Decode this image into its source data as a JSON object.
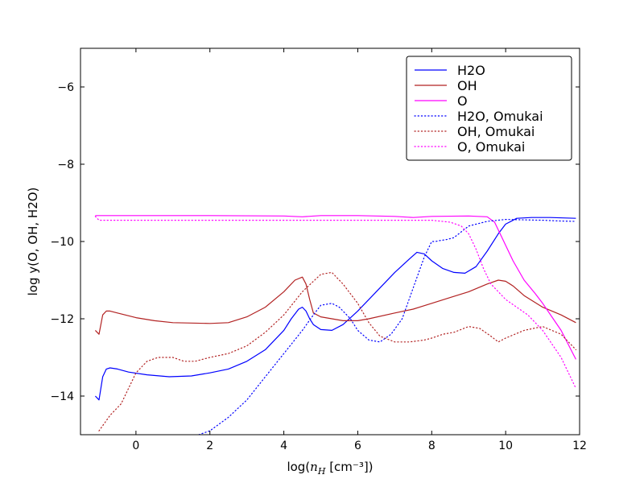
{
  "chart_data": {
    "type": "line",
    "title": "",
    "xlabel": "log(n_H [cm⁻³])",
    "xlabel_parts": {
      "pre": "log(",
      "var": "n",
      "sub": "H",
      "post": " [cm⁻³])"
    },
    "ylabel": "log y(O, OH, H2O)",
    "xlim": [
      -1.5,
      12
    ],
    "ylim": [
      -15,
      -5
    ],
    "xticks": [
      0,
      2,
      4,
      6,
      8,
      10,
      12
    ],
    "yticks": [
      -14,
      -12,
      -10,
      -8,
      -6
    ],
    "xtick_labels": [
      "0",
      "2",
      "4",
      "6",
      "8",
      "10",
      "12"
    ],
    "ytick_labels": [
      "−14",
      "−12",
      "−10",
      "−8",
      "−6"
    ],
    "grid": false,
    "legend_position": "top-right",
    "series": [
      {
        "name": "H2O",
        "color": "#0000ff",
        "style": "solid",
        "x": [
          -1.1,
          -1.0,
          -0.9,
          -0.8,
          -0.7,
          -0.5,
          -0.2,
          0.3,
          0.9,
          1.5,
          2.0,
          2.5,
          3.0,
          3.5,
          4.0,
          4.2,
          4.4,
          4.5,
          4.6,
          4.7,
          4.8,
          5.0,
          5.3,
          5.6,
          6.0,
          6.5,
          7.0,
          7.4,
          7.6,
          7.8,
          8.0,
          8.3,
          8.6,
          8.9,
          9.2,
          9.5,
          9.8,
          10.0,
          10.3,
          10.7,
          11.2,
          11.9
        ],
        "y": [
          -14.0,
          -14.1,
          -13.5,
          -13.3,
          -13.27,
          -13.3,
          -13.38,
          -13.45,
          -13.5,
          -13.48,
          -13.4,
          -13.3,
          -13.1,
          -12.8,
          -12.3,
          -12.0,
          -11.75,
          -11.7,
          -11.8,
          -12.0,
          -12.15,
          -12.28,
          -12.3,
          -12.15,
          -11.8,
          -11.3,
          -10.8,
          -10.45,
          -10.28,
          -10.32,
          -10.5,
          -10.7,
          -10.8,
          -10.82,
          -10.65,
          -10.25,
          -9.8,
          -9.55,
          -9.4,
          -9.38,
          -9.38,
          -9.4
        ]
      },
      {
        "name": "OH",
        "color": "#b22222",
        "style": "solid",
        "x": [
          -1.1,
          -1.0,
          -0.9,
          -0.8,
          -0.7,
          -0.5,
          0.0,
          0.5,
          1.0,
          2.0,
          2.5,
          3.0,
          3.5,
          4.0,
          4.3,
          4.5,
          4.6,
          4.7,
          4.8,
          5.0,
          5.3,
          5.6,
          6.0,
          6.3,
          7.0,
          7.5,
          8.0,
          8.5,
          9.0,
          9.5,
          9.8,
          10.0,
          10.2,
          10.5,
          11.0,
          11.5,
          11.9
        ],
        "y": [
          -12.3,
          -12.4,
          -11.9,
          -11.8,
          -11.8,
          -11.85,
          -11.97,
          -12.05,
          -12.1,
          -12.12,
          -12.1,
          -11.95,
          -11.7,
          -11.3,
          -11.0,
          -10.92,
          -11.1,
          -11.5,
          -11.85,
          -11.95,
          -12.0,
          -12.05,
          -12.05,
          -12.0,
          -11.85,
          -11.75,
          -11.6,
          -11.45,
          -11.3,
          -11.1,
          -11.0,
          -11.03,
          -11.15,
          -11.4,
          -11.7,
          -11.9,
          -12.1
        ]
      },
      {
        "name": "O",
        "color": "#ff00ff",
        "style": "solid",
        "x": [
          -1.1,
          -1.0,
          0.0,
          2.0,
          4.0,
          4.5,
          5.0,
          6.0,
          7.0,
          7.5,
          8.0,
          9.0,
          9.5,
          9.7,
          9.9,
          10.2,
          10.5,
          10.8,
          11.0,
          11.5,
          11.9
        ],
        "y": [
          -9.33,
          -9.33,
          -9.33,
          -9.33,
          -9.34,
          -9.36,
          -9.33,
          -9.33,
          -9.35,
          -9.38,
          -9.35,
          -9.34,
          -9.36,
          -9.5,
          -9.9,
          -10.5,
          -11.0,
          -11.35,
          -11.6,
          -12.3,
          -13.05
        ]
      },
      {
        "name": "H2O, Omukai",
        "color": "#0000ff",
        "style": "dotted",
        "x": [
          1.7,
          2.0,
          2.5,
          3.0,
          3.5,
          4.0,
          4.5,
          4.8,
          5.0,
          5.3,
          5.5,
          5.8,
          6.0,
          6.3,
          6.6,
          6.9,
          7.2,
          7.5,
          7.8,
          8.0,
          8.1,
          8.2,
          8.4,
          8.6,
          8.8,
          9.0,
          9.5,
          10.0,
          10.5,
          11.0,
          11.5,
          11.9
        ],
        "y": [
          -15.0,
          -14.9,
          -14.55,
          -14.1,
          -13.5,
          -12.9,
          -12.3,
          -11.9,
          -11.65,
          -11.6,
          -11.7,
          -12.0,
          -12.3,
          -12.55,
          -12.6,
          -12.4,
          -12.0,
          -11.2,
          -10.4,
          -10.0,
          -10.0,
          -9.98,
          -9.95,
          -9.9,
          -9.75,
          -9.6,
          -9.48,
          -9.43,
          -9.44,
          -9.45,
          -9.47,
          -9.48
        ]
      },
      {
        "name": "OH, Omukai",
        "color": "#b22222",
        "style": "dotted",
        "x": [
          -1.0,
          -0.7,
          -0.4,
          -0.2,
          0.0,
          0.3,
          0.6,
          1.0,
          1.3,
          1.6,
          2.0,
          2.5,
          3.0,
          3.5,
          4.0,
          4.5,
          5.0,
          5.3,
          5.6,
          6.0,
          6.3,
          6.6,
          7.0,
          7.4,
          7.8,
          8.0,
          8.3,
          8.6,
          9.0,
          9.3,
          9.6,
          9.8,
          10.0,
          10.5,
          11.0,
          11.5,
          11.9
        ],
        "y": [
          -14.9,
          -14.5,
          -14.2,
          -13.8,
          -13.4,
          -13.1,
          -13.0,
          -13.0,
          -13.1,
          -13.1,
          -13.0,
          -12.9,
          -12.7,
          -12.35,
          -11.9,
          -11.3,
          -10.85,
          -10.8,
          -11.1,
          -11.6,
          -12.1,
          -12.45,
          -12.6,
          -12.6,
          -12.55,
          -12.5,
          -12.4,
          -12.35,
          -12.2,
          -12.25,
          -12.45,
          -12.6,
          -12.5,
          -12.3,
          -12.2,
          -12.4,
          -12.8
        ]
      },
      {
        "name": "O, Omukai",
        "color": "#ff00ff",
        "style": "dotted",
        "x": [
          -1.1,
          -1.0,
          0.0,
          2.0,
          4.0,
          6.0,
          7.0,
          8.0,
          8.5,
          8.8,
          9.0,
          9.2,
          9.4,
          9.6,
          9.8,
          10.0,
          10.3,
          10.6,
          11.0,
          11.5,
          11.9
        ],
        "y": [
          -9.35,
          -9.45,
          -9.45,
          -9.45,
          -9.45,
          -9.45,
          -9.45,
          -9.45,
          -9.5,
          -9.6,
          -9.8,
          -10.2,
          -10.7,
          -11.1,
          -11.3,
          -11.5,
          -11.7,
          -11.9,
          -12.3,
          -13.0,
          -13.8
        ]
      }
    ]
  }
}
